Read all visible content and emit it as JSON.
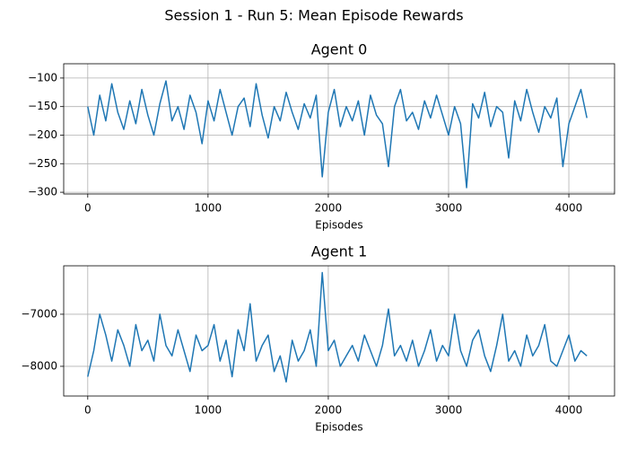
{
  "suptitle": "Session 1 - Run 5: Mean Episode Rewards",
  "chart_data": [
    {
      "type": "line",
      "title": "Agent 0",
      "xlabel": "Episodes",
      "grid": true,
      "x": [
        0,
        50,
        100,
        150,
        200,
        250,
        300,
        350,
        400,
        450,
        500,
        550,
        600,
        650,
        700,
        750,
        800,
        850,
        900,
        950,
        1000,
        1050,
        1100,
        1150,
        1200,
        1250,
        1300,
        1350,
        1400,
        1450,
        1500,
        1550,
        1600,
        1650,
        1700,
        1750,
        1800,
        1850,
        1900,
        1950,
        2000,
        2050,
        2100,
        2150,
        2200,
        2250,
        2300,
        2350,
        2400,
        2450,
        2500,
        2550,
        2600,
        2650,
        2700,
        2750,
        2800,
        2850,
        2900,
        2950,
        3000,
        3050,
        3100,
        3150,
        3200,
        3250,
        3300,
        3350,
        3400,
        3450,
        3500,
        3550,
        3600,
        3650,
        3700,
        3750,
        3800,
        3850,
        3900,
        3950,
        4000,
        4050,
        4100,
        4150
      ],
      "series": [
        {
          "name": "Agent 0",
          "color": "#1f77b4",
          "values": [
            -150,
            -200,
            -130,
            -175,
            -110,
            -160,
            -190,
            -140,
            -180,
            -120,
            -165,
            -200,
            -145,
            -105,
            -175,
            -150,
            -190,
            -130,
            -160,
            -215,
            -140,
            -175,
            -120,
            -160,
            -200,
            -150,
            -135,
            -185,
            -110,
            -165,
            -205,
            -150,
            -175,
            -125,
            -160,
            -190,
            -145,
            -170,
            -130,
            -273,
            -160,
            -120,
            -185,
            -150,
            -175,
            -140,
            -200,
            -130,
            -165,
            -180,
            -255,
            -150,
            -120,
            -175,
            -160,
            -190,
            -140,
            -170,
            -130,
            -165,
            -200,
            -150,
            -180,
            -292,
            -145,
            -170,
            -125,
            -185,
            -150,
            -160,
            -240,
            -140,
            -175,
            -120,
            -160,
            -195,
            -150,
            -170,
            -135,
            -255,
            -180,
            -150,
            -120,
            -170
          ]
        }
      ],
      "xlim": [
        -200,
        4380
      ],
      "xticks": [
        0,
        1000,
        2000,
        3000,
        4000
      ],
      "ylim": [
        -303,
        -75
      ],
      "yticks": [
        {
          "value": -300,
          "label": "−300"
        },
        {
          "value": -250,
          "label": "−250"
        },
        {
          "value": -200,
          "label": "−200"
        },
        {
          "value": -150,
          "label": "−150"
        },
        {
          "value": -100,
          "label": "−100"
        }
      ]
    },
    {
      "type": "line",
      "title": "Agent 1",
      "xlabel": "Episodes",
      "grid": true,
      "x": [
        0,
        50,
        100,
        150,
        200,
        250,
        300,
        350,
        400,
        450,
        500,
        550,
        600,
        650,
        700,
        750,
        800,
        850,
        900,
        950,
        1000,
        1050,
        1100,
        1150,
        1200,
        1250,
        1300,
        1350,
        1400,
        1450,
        1500,
        1550,
        1600,
        1650,
        1700,
        1750,
        1800,
        1850,
        1900,
        1950,
        2000,
        2050,
        2100,
        2150,
        2200,
        2250,
        2300,
        2350,
        2400,
        2450,
        2500,
        2550,
        2600,
        2650,
        2700,
        2750,
        2800,
        2850,
        2900,
        2950,
        3000,
        3050,
        3100,
        3150,
        3200,
        3250,
        3300,
        3350,
        3400,
        3450,
        3500,
        3550,
        3600,
        3650,
        3700,
        3750,
        3800,
        3850,
        3900,
        3950,
        4000,
        4050,
        4100,
        4150
      ],
      "series": [
        {
          "name": "Agent 1",
          "color": "#1f77b4",
          "values": [
            -8200,
            -7700,
            -7000,
            -7400,
            -7900,
            -7300,
            -7600,
            -8000,
            -7200,
            -7700,
            -7500,
            -7900,
            -7000,
            -7600,
            -7800,
            -7300,
            -7700,
            -8100,
            -7400,
            -7700,
            -7600,
            -7200,
            -7900,
            -7500,
            -8200,
            -7300,
            -7700,
            -6800,
            -7900,
            -7600,
            -7400,
            -8100,
            -7800,
            -8300,
            -7500,
            -7900,
            -7700,
            -7300,
            -8000,
            -6200,
            -7700,
            -7500,
            -8000,
            -7800,
            -7600,
            -7900,
            -7400,
            -7700,
            -8000,
            -7600,
            -6900,
            -7800,
            -7600,
            -7900,
            -7500,
            -8000,
            -7700,
            -7300,
            -7900,
            -7600,
            -7800,
            -7000,
            -7700,
            -8000,
            -7500,
            -7300,
            -7800,
            -8100,
            -7600,
            -7000,
            -7900,
            -7700,
            -8000,
            -7400,
            -7800,
            -7600,
            -7200,
            -7900,
            -8000,
            -7700,
            -7400,
            -7900,
            -7700,
            -7800
          ]
        }
      ],
      "xlim": [
        -200,
        4380
      ],
      "xticks": [
        0,
        1000,
        2000,
        3000,
        4000
      ],
      "ylim": [
        -8570,
        -6070
      ],
      "yticks": [
        {
          "value": -8000,
          "label": "−8000"
        },
        {
          "value": -7000,
          "label": "−7000"
        }
      ]
    }
  ]
}
